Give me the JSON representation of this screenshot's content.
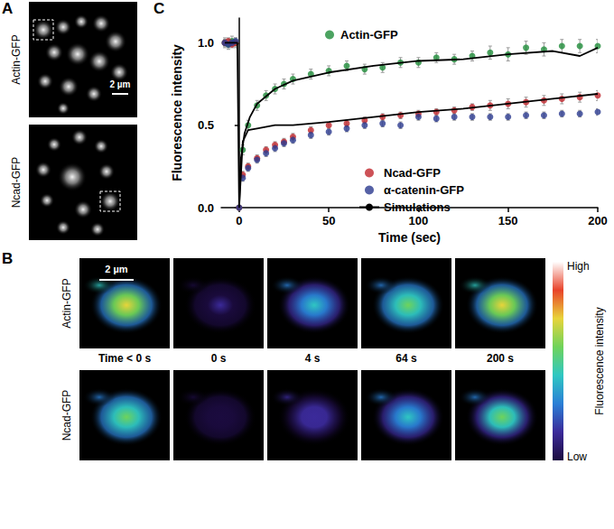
{
  "panels": {
    "A": {
      "label": "A",
      "rows": [
        "Actin-GFP",
        "Ncad-GFP"
      ],
      "scale_bar": "2 µm"
    },
    "B": {
      "label": "B",
      "rows": [
        "Actin-GFP",
        "Ncad-GFP"
      ],
      "scale_bar": "2 µm",
      "times": [
        "Time < 0 s",
        "0 s",
        "4 s",
        "64 s",
        "200 s"
      ],
      "colorbar": {
        "title": "Fluorescence intensity",
        "high": "High",
        "low": "Low"
      }
    },
    "C": {
      "label": "C"
    }
  },
  "chart_data": {
    "type": "scatter",
    "x_label": "Time (sec)",
    "y_label": "Fluorescence intensity",
    "xlim": [
      -10,
      200
    ],
    "xticks": [
      0,
      50,
      100,
      150,
      200
    ],
    "ylim": [
      0,
      1.15
    ],
    "yticks": [
      {
        "value": 0,
        "label": "0.0"
      },
      0.5,
      {
        "value": 1,
        "label": "1.0"
      }
    ],
    "grid": false,
    "legend": "inside",
    "series": [
      {
        "name": "Actin-GFP",
        "type": "scatter",
        "marker": "circle",
        "color": "#1f8c3a",
        "x": [
          -8,
          -6,
          -4,
          -2,
          0,
          2,
          5,
          10,
          15,
          20,
          25,
          30,
          40,
          50,
          60,
          70,
          80,
          90,
          100,
          110,
          120,
          130,
          140,
          150,
          160,
          170,
          180,
          190,
          200
        ],
        "values": [
          1.0,
          0.99,
          1.01,
          1.0,
          0.0,
          0.35,
          0.5,
          0.62,
          0.68,
          0.72,
          0.75,
          0.78,
          0.81,
          0.83,
          0.86,
          0.84,
          0.85,
          0.88,
          0.88,
          0.91,
          0.9,
          0.92,
          0.94,
          0.93,
          0.97,
          0.96,
          0.98,
          0.98,
          0.98
        ],
        "errors": [
          0.03,
          0.03,
          0.03,
          0.03,
          0.01,
          0.03,
          0.03,
          0.03,
          0.03,
          0.03,
          0.03,
          0.03,
          0.03,
          0.03,
          0.03,
          0.03,
          0.03,
          0.03,
          0.03,
          0.03,
          0.03,
          0.03,
          0.04,
          0.04,
          0.04,
          0.04,
          0.04,
          0.04,
          0.04
        ]
      },
      {
        "name": "Ncad-GFP",
        "type": "scatter",
        "marker": "circle",
        "color": "#c0272d",
        "x": [
          -8,
          -6,
          -4,
          -2,
          0,
          2,
          5,
          10,
          15,
          20,
          25,
          30,
          40,
          50,
          60,
          70,
          80,
          90,
          100,
          110,
          120,
          130,
          140,
          150,
          160,
          170,
          180,
          190,
          200
        ],
        "values": [
          1.0,
          1.01,
          0.99,
          1.0,
          0.0,
          0.2,
          0.25,
          0.3,
          0.35,
          0.38,
          0.4,
          0.43,
          0.47,
          0.5,
          0.51,
          0.53,
          0.55,
          0.56,
          0.57,
          0.58,
          0.59,
          0.61,
          0.62,
          0.63,
          0.64,
          0.65,
          0.66,
          0.67,
          0.68
        ],
        "errors": [
          0.02,
          0.02,
          0.02,
          0.02,
          0.01,
          0.02,
          0.02,
          0.02,
          0.02,
          0.02,
          0.02,
          0.02,
          0.02,
          0.02,
          0.02,
          0.02,
          0.02,
          0.02,
          0.02,
          0.02,
          0.02,
          0.02,
          0.03,
          0.03,
          0.03,
          0.03,
          0.03,
          0.03,
          0.03
        ]
      },
      {
        "name": "α-catenin-GFP",
        "type": "scatter",
        "marker": "circle",
        "color": "#2b3a8f",
        "x": [
          -8,
          -6,
          -4,
          -2,
          0,
          2,
          5,
          10,
          15,
          20,
          25,
          30,
          40,
          50,
          60,
          70,
          80,
          90,
          100,
          110,
          120,
          130,
          140,
          150,
          160,
          170,
          180,
          190,
          200
        ],
        "values": [
          1.0,
          0.99,
          1.0,
          1.01,
          0.0,
          0.18,
          0.24,
          0.29,
          0.33,
          0.36,
          0.39,
          0.41,
          0.44,
          0.46,
          0.48,
          0.5,
          0.51,
          0.5,
          0.55,
          0.54,
          0.55,
          0.55,
          0.55,
          0.55,
          0.56,
          0.56,
          0.57,
          0.57,
          0.58
        ],
        "errors": [
          0.02,
          0.02,
          0.02,
          0.02,
          0.01,
          0.02,
          0.02,
          0.02,
          0.02,
          0.02,
          0.02,
          0.02,
          0.02,
          0.02,
          0.02,
          0.02,
          0.02,
          0.02,
          0.02,
          0.02,
          0.02,
          0.02,
          0.02,
          0.02,
          0.02,
          0.02,
          0.02,
          0.02,
          0.02
        ]
      },
      {
        "name": "Simulations",
        "type": "line",
        "line_style": "solid",
        "color": "#000000",
        "x": [
          -8,
          -1,
          0,
          1,
          3,
          6,
          10,
          20,
          30,
          50,
          75,
          100,
          125,
          150,
          175,
          190,
          200
        ],
        "values": [
          1.0,
          1.0,
          0.0,
          0.3,
          0.45,
          0.55,
          0.63,
          0.72,
          0.77,
          0.82,
          0.86,
          0.89,
          0.9,
          0.93,
          0.95,
          0.92,
          0.97
        ]
      },
      {
        "name": "Simulations",
        "type": "line",
        "line_style": "solid",
        "color": "#000000",
        "x": [
          0,
          2,
          5,
          10,
          20,
          30,
          50,
          75,
          100,
          125,
          150,
          175,
          200
        ],
        "values": [
          0.0,
          0.4,
          0.47,
          0.48,
          0.5,
          0.5,
          0.52,
          0.55,
          0.58,
          0.6,
          0.63,
          0.66,
          0.69
        ]
      }
    ]
  }
}
